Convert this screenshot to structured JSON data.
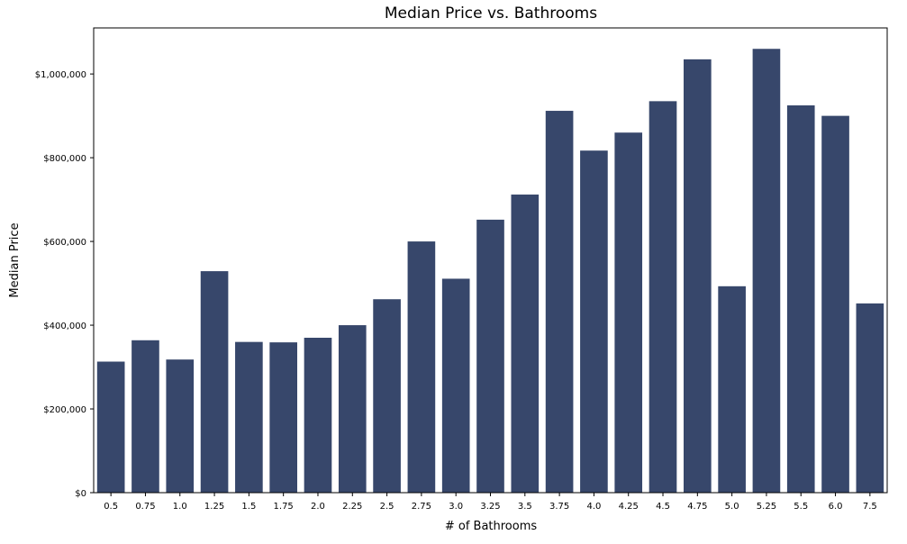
{
  "chart_data": {
    "type": "bar",
    "title": "Median Price vs. Bathrooms",
    "xlabel": "# of Bathrooms",
    "ylabel": "Median Price",
    "categories": [
      "0.5",
      "0.75",
      "1.0",
      "1.25",
      "1.5",
      "1.75",
      "2.0",
      "2.25",
      "2.5",
      "2.75",
      "3.0",
      "3.25",
      "3.5",
      "3.75",
      "4.0",
      "4.25",
      "4.5",
      "4.75",
      "5.0",
      "5.25",
      "5.5",
      "6.0",
      "7.5"
    ],
    "values": [
      313000,
      364000,
      318000,
      529000,
      360000,
      359000,
      370000,
      400000,
      462000,
      600000,
      511000,
      652000,
      712000,
      912000,
      817000,
      860000,
      935000,
      1035000,
      493000,
      1060000,
      925000,
      900000,
      452000
    ],
    "ylim": [
      0,
      1110000
    ],
    "yticks": [
      0,
      200000,
      400000,
      600000,
      800000,
      1000000
    ],
    "ytick_labels": [
      "$0",
      "$200,000",
      "$400,000",
      "$600,000",
      "$800,000",
      "$1,000,000"
    ],
    "bar_color": "#37476b",
    "grid": false
  }
}
